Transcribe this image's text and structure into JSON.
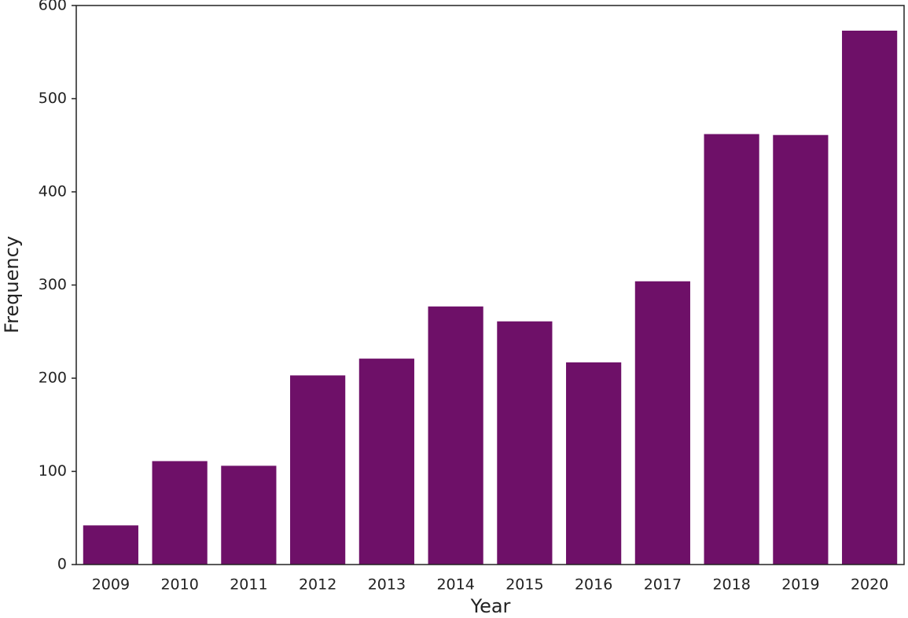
{
  "chart_data": {
    "type": "bar",
    "x_label": "Year",
    "y_label": "Frequency",
    "categories": [
      "2009",
      "2010",
      "2011",
      "2012",
      "2013",
      "2014",
      "2015",
      "2016",
      "2017",
      "2018",
      "2019",
      "2020"
    ],
    "values": [
      42,
      111,
      106,
      203,
      221,
      277,
      261,
      217,
      304,
      462,
      461,
      573
    ],
    "color": "#6e1068",
    "ylim": [
      0,
      600
    ],
    "yticks": [
      0,
      100,
      200,
      300,
      400,
      500,
      600
    ],
    "grid": false
  }
}
